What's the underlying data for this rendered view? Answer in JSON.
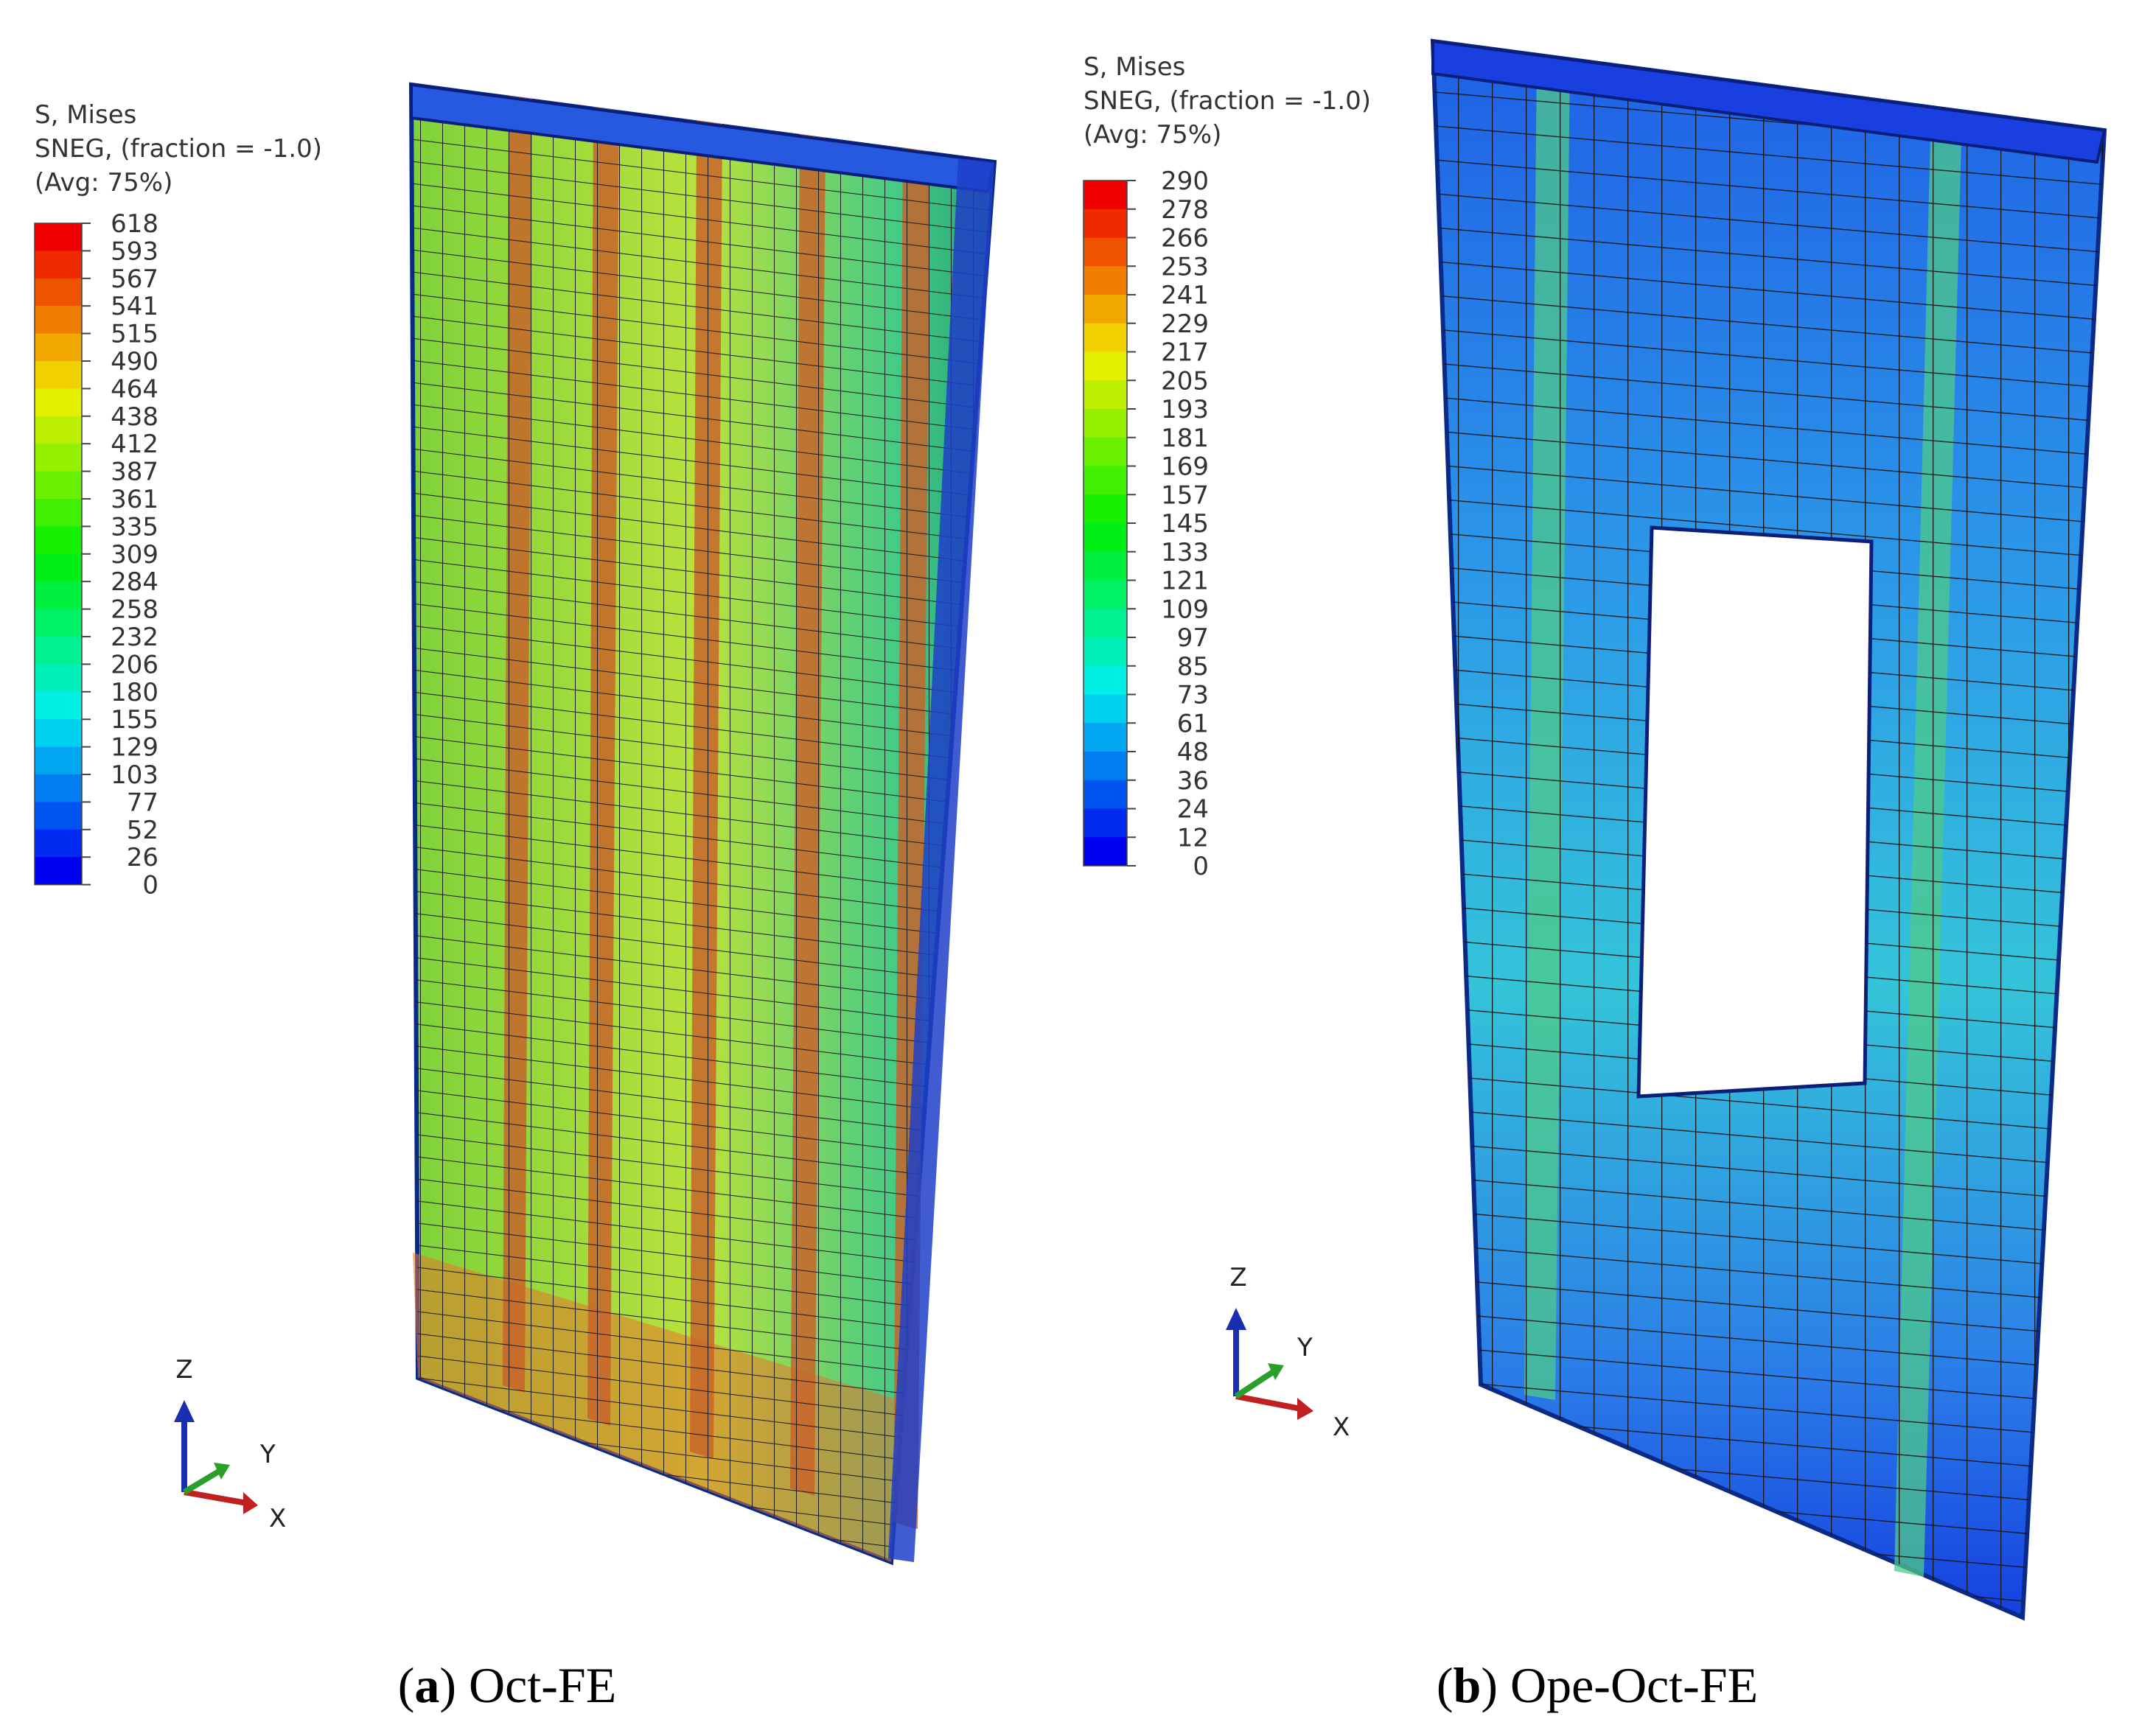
{
  "panels": [
    {
      "legend": {
        "title": [
          "S, Mises",
          "SNEG, (fraction = -1.0)",
          "(Avg: 75%)"
        ],
        "labels": [
          "618",
          "593",
          "567",
          "541",
          "515",
          "490",
          "464",
          "438",
          "412",
          "387",
          "361",
          "335",
          "309",
          "284",
          "258",
          "232",
          "206",
          "180",
          "155",
          "129",
          "103",
          "77",
          "52",
          "26",
          "0"
        ]
      },
      "axes": {
        "z": "Z",
        "y": "Y",
        "x": "X"
      },
      "caption": [
        "(",
        "a",
        ") Oct-FE"
      ]
    },
    {
      "legend": {
        "title": [
          "S, Mises",
          "SNEG, (fraction = -1.0)",
          "(Avg: 75%)"
        ],
        "labels": [
          "290",
          "278",
          "266",
          "253",
          "241",
          "229",
          "217",
          "205",
          "193",
          "181",
          "169",
          "157",
          "145",
          "133",
          "121",
          "109",
          "97",
          "85",
          "73",
          "61",
          "48",
          "36",
          "24",
          "12",
          "0"
        ]
      },
      "axes": {
        "z": "Z",
        "y": "Y",
        "x": "X"
      },
      "caption": [
        "(",
        "b",
        ") Ope-Oct-FE"
      ]
    }
  ]
}
